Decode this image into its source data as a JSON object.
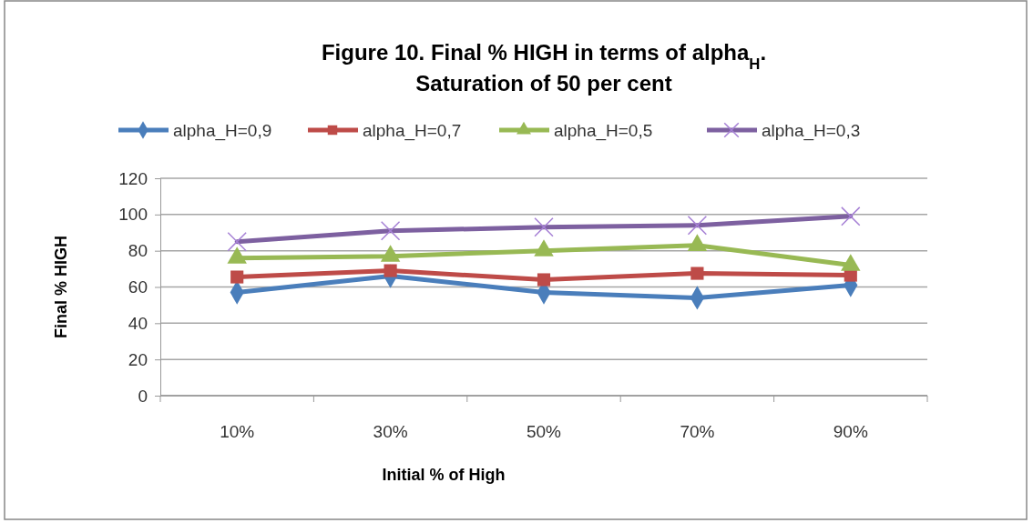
{
  "chart_data": {
    "type": "line",
    "title": "Figure 10. Final %  HIGH in terms of alpha$_{H}$.\nSaturation of 50 per cent",
    "xlabel": "Initial % of High",
    "ylabel": "Final % HIGH",
    "categories": [
      "10%",
      "30%",
      "50%",
      "70%",
      "90%"
    ],
    "ylim": [
      0,
      120
    ],
    "yticks": [
      0,
      20,
      40,
      60,
      80,
      100,
      120
    ],
    "grid": "y",
    "legend": "top",
    "series": [
      {
        "name": "alpha_H=0,9",
        "color": "#4a7ebb",
        "marker": "diamond",
        "values": [
          57,
          66,
          57,
          54,
          61
        ]
      },
      {
        "name": "alpha_H=0,7",
        "color": "#be4b48",
        "marker": "square",
        "values": [
          65.5,
          69,
          64,
          67.5,
          66.5
        ]
      },
      {
        "name": "alpha_H=0,5",
        "color": "#98b954",
        "marker": "triangle",
        "values": [
          76,
          77,
          80,
          83,
          72
        ]
      },
      {
        "name": "alpha_H=0,3",
        "color": "#7d60a0",
        "marker": "cross",
        "values": [
          85,
          91,
          93,
          94,
          99
        ]
      }
    ]
  }
}
